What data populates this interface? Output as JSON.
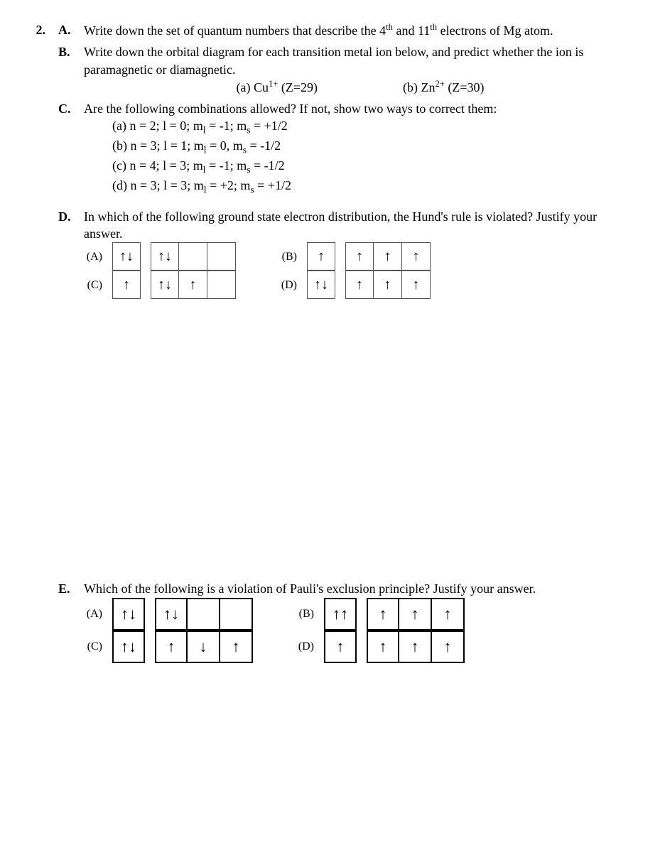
{
  "q_num": "2.",
  "A": {
    "letter": "A.",
    "text_html": "Write down the set of quantum numbers that describe the 4<sup>th</sup> and 11<sup>th</sup> electrons of Mg atom."
  },
  "B": {
    "letter": "B.",
    "text": "Write down the orbital diagram for each transition metal ion below, and predict whether the ion is paramagnetic or diamagnetic.",
    "sub_a_html": "(a) Cu<sup>1+</sup> (Z=29)",
    "sub_b_html": "(b)  Zn<sup>2+</sup> (Z=30)"
  },
  "C": {
    "letter": "C.",
    "text": "Are the following combinations allowed? If not, show two ways to correct them:",
    "lines": [
      "(a) n = 2; l = 0; m<sub>l</sub> = -1; m<sub>s</sub> = +1/2",
      "(b) n = 3; l = 1; m<sub>l</sub> = 0, m<sub>s</sub> = -1/2",
      "(c) n = 4; l = 3; m<sub>l</sub> = -1; m<sub>s</sub> = -1/2",
      "(d) n = 3; l = 3; m<sub>l</sub> = +2; m<sub>s</sub> = +1/2"
    ]
  },
  "D": {
    "letter": "D.",
    "text": "In which of the following ground state electron distribution, the Hund's rule is violated? Justify your answer.",
    "options": {
      "A": {
        "label": "(A)",
        "g1": [
          "↑↓"
        ],
        "g2": [
          "↑↓",
          "",
          ""
        ]
      },
      "B": {
        "label": "(B)",
        "g1": [
          "↑"
        ],
        "g2": [
          "↑",
          "↑",
          "↑"
        ]
      },
      "C": {
        "label": "(C)",
        "g1": [
          "↑"
        ],
        "g2": [
          "↑↓",
          "↑",
          ""
        ]
      },
      "D": {
        "label": "(D)",
        "g1": [
          "↑↓"
        ],
        "g2": [
          "↑",
          "↑",
          "↑"
        ]
      }
    }
  },
  "E": {
    "letter": "E.",
    "text": "Which of the following is a violation of Pauli's exclusion principle? Justify your answer.",
    "options": {
      "A": {
        "label": "(A)",
        "g1": [
          "↑↓"
        ],
        "g2": [
          "↑↓",
          "",
          ""
        ]
      },
      "B": {
        "label": "(B)",
        "g1": [
          "↑↑"
        ],
        "g2": [
          "↑",
          "↑",
          "↑"
        ]
      },
      "C": {
        "label": "(C)",
        "g1": [
          "↑↓"
        ],
        "g2": [
          "↑",
          "↓",
          "↑"
        ]
      },
      "D": {
        "label": "(D)",
        "g1": [
          "↑"
        ],
        "g2": [
          "↑",
          "↑",
          "↑"
        ]
      }
    }
  },
  "style": {
    "box_border": "#555",
    "bigbox_border": "#000",
    "arrow_up": "↑",
    "arrow_down": "↓"
  }
}
